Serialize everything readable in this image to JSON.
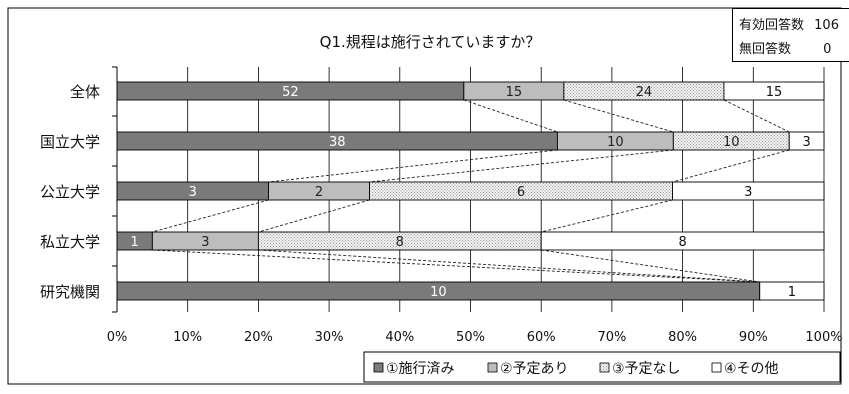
{
  "info": {
    "valid_label": "有効回答数",
    "valid_value": "106",
    "none_label": "無回答数",
    "none_value": "0"
  },
  "legend": {
    "items": [
      {
        "label": "①施行済み",
        "color": "#7a7a7a"
      },
      {
        "label": "②予定あり",
        "color": "#bdbdbd"
      },
      {
        "label": "③予定なし",
        "color": "#eeeeee"
      },
      {
        "label": "④その他",
        "color": "#ffffff"
      }
    ]
  },
  "chart_data": {
    "type": "bar",
    "orientation": "horizontal",
    "stacked": "percent",
    "title": "Q1.規程は施行されていますか？",
    "categories": [
      "全体",
      "国立大学",
      "公立大学",
      "私立大学",
      "研究機関"
    ],
    "series": [
      {
        "name": "①施行済み",
        "values": [
          52,
          38,
          3,
          1,
          10
        ]
      },
      {
        "name": "②予定あり",
        "values": [
          15,
          10,
          2,
          3,
          0
        ]
      },
      {
        "name": "③予定なし",
        "values": [
          24,
          10,
          6,
          8,
          0
        ]
      },
      {
        "name": "④その他",
        "values": [
          15,
          3,
          3,
          8,
          1
        ]
      }
    ],
    "xlim": [
      0,
      100
    ],
    "xticks": [
      "0%",
      "10%",
      "20%",
      "30%",
      "40%",
      "50%",
      "60%",
      "70%",
      "80%",
      "90%",
      "100%"
    ],
    "grid": true,
    "series_lines": true,
    "legend_position": "bottom-right"
  }
}
